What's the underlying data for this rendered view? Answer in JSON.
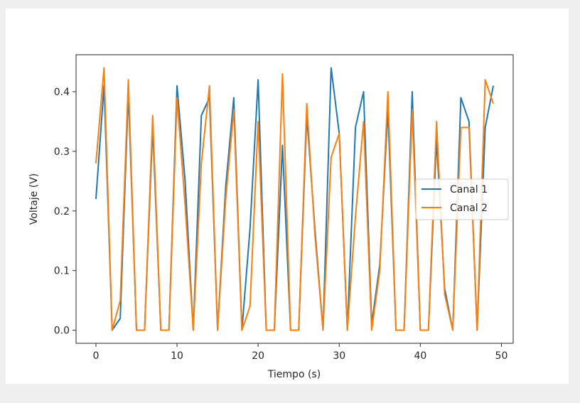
{
  "chart_data": {
    "type": "line",
    "title": "",
    "xlabel": "Tiempo (s)",
    "ylabel": "Voltaje (V)",
    "xlim": [
      -2.45,
      51.45
    ],
    "ylim": [
      -0.022,
      0.462
    ],
    "xticks": [
      0,
      10,
      20,
      30,
      40,
      50
    ],
    "yticks": [
      0.0,
      0.1,
      0.2,
      0.3,
      0.4
    ],
    "xtick_labels": [
      "0",
      "10",
      "20",
      "30",
      "40",
      "50"
    ],
    "ytick_labels": [
      "0.0",
      "0.1",
      "0.2",
      "0.3",
      "0.4"
    ],
    "grid": false,
    "legend_position": "center-right",
    "x": [
      0,
      1,
      2,
      3,
      4,
      5,
      6,
      7,
      8,
      9,
      10,
      11,
      12,
      13,
      14,
      15,
      16,
      17,
      18,
      19,
      20,
      21,
      22,
      23,
      24,
      25,
      26,
      27,
      28,
      29,
      30,
      31,
      32,
      33,
      34,
      35,
      36,
      37,
      38,
      39,
      40,
      41,
      42,
      43,
      44,
      45,
      46,
      47,
      48,
      49
    ],
    "series": [
      {
        "name": "Canal 1",
        "color": "#1f77b4",
        "values": [
          0.22,
          0.41,
          0.0,
          0.02,
          0.4,
          0.0,
          0.0,
          0.34,
          0.0,
          0.0,
          0.41,
          0.25,
          0.0,
          0.36,
          0.39,
          0.0,
          0.24,
          0.39,
          0.0,
          0.17,
          0.42,
          0.0,
          0.0,
          0.31,
          0.0,
          0.0,
          0.36,
          0.17,
          0.0,
          0.44,
          0.33,
          0.0,
          0.34,
          0.4,
          0.01,
          0.11,
          0.37,
          0.0,
          0.0,
          0.4,
          0.0,
          0.0,
          0.32,
          0.07,
          0.0,
          0.39,
          0.35,
          0.0,
          0.34,
          0.41
        ]
      },
      {
        "name": "Canal 2",
        "color": "#ff7f0e",
        "values": [
          0.28,
          0.44,
          0.0,
          0.05,
          0.42,
          0.0,
          0.0,
          0.36,
          0.0,
          0.0,
          0.39,
          0.21,
          0.0,
          0.28,
          0.41,
          0.0,
          0.22,
          0.37,
          0.0,
          0.04,
          0.35,
          0.0,
          0.0,
          0.43,
          0.0,
          0.0,
          0.38,
          0.16,
          0.0,
          0.29,
          0.33,
          0.0,
          0.19,
          0.35,
          0.0,
          0.1,
          0.4,
          0.0,
          0.0,
          0.37,
          0.0,
          0.0,
          0.35,
          0.06,
          0.0,
          0.34,
          0.34,
          0.0,
          0.42,
          0.38
        ]
      }
    ]
  }
}
